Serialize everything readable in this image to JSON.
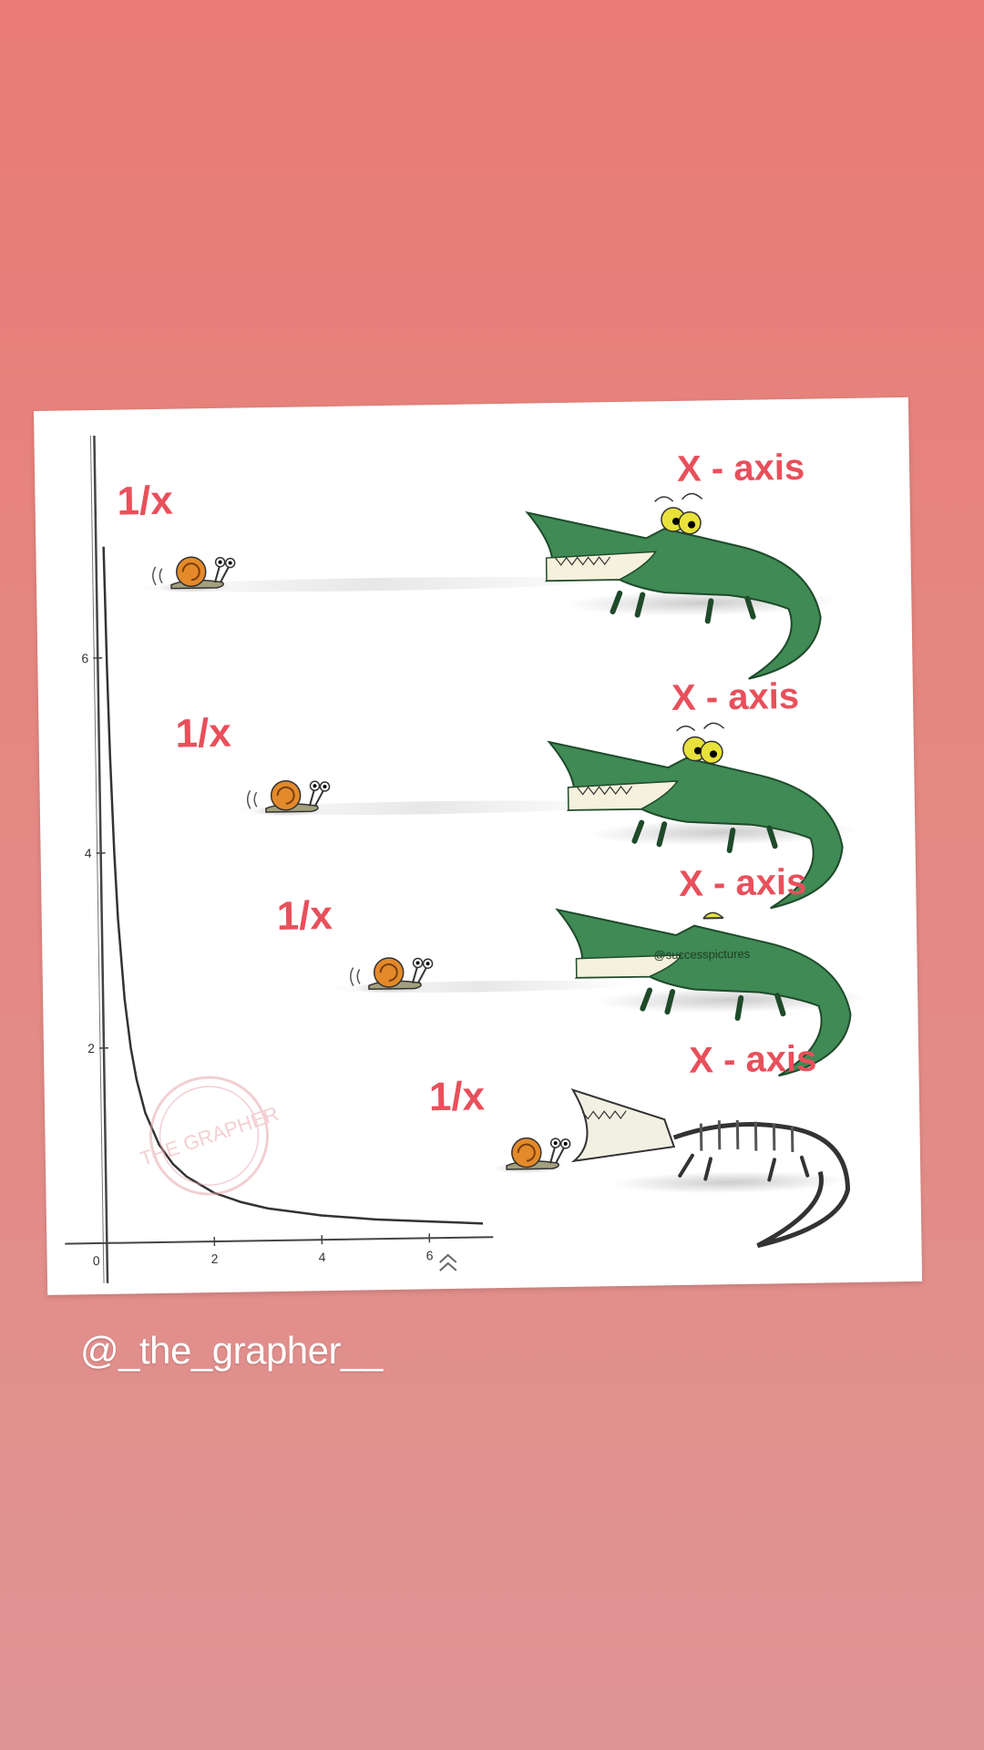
{
  "chart_data": {
    "type": "line",
    "function": "1/x",
    "x": [
      0.14,
      0.17,
      0.2,
      0.25,
      0.3,
      0.4,
      0.5,
      0.6,
      0.75,
      1.0,
      1.25,
      1.5,
      2.0,
      2.5,
      3.0,
      4.0,
      5.0,
      6.0,
      7.0
    ],
    "y": [
      7.14,
      5.88,
      5.0,
      4.0,
      3.33,
      2.5,
      2.0,
      1.67,
      1.33,
      1.0,
      0.8,
      0.67,
      0.5,
      0.4,
      0.33,
      0.25,
      0.2,
      0.17,
      0.14
    ],
    "x_ticks": [
      "0",
      "2",
      "4",
      "6"
    ],
    "y_ticks": [
      "2",
      "4",
      "6"
    ],
    "xlim": [
      0,
      7
    ],
    "ylim": [
      0,
      8
    ],
    "grid": false,
    "color": "#333333"
  },
  "scenes": [
    {
      "function_label": "1/x",
      "axis_label": "X - axis",
      "crocodile_state": "alive"
    },
    {
      "function_label": "1/x",
      "axis_label": "X - axis",
      "crocodile_state": "alive"
    },
    {
      "function_label": "1/x",
      "axis_label": "X - axis",
      "crocodile_state": "tired"
    },
    {
      "function_label": "1/x",
      "axis_label": "X - axis",
      "crocodile_state": "skeleton"
    }
  ],
  "stamp_text": "THE GRAPHER",
  "image_watermark": "@successpictures",
  "handle": "@_the_grapher__",
  "colors": {
    "background_top": "#e97a75",
    "background_bottom": "#df9595",
    "label_red": "#e8505b",
    "croc_green": "#3f8a55",
    "snail_shell": "#e38a2a"
  }
}
